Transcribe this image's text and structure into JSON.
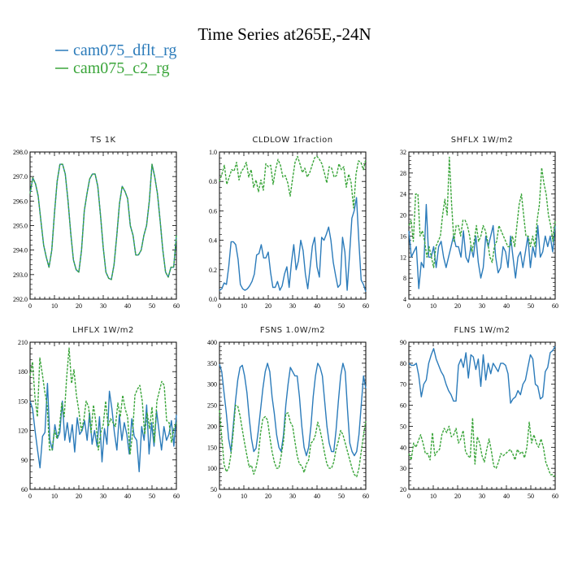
{
  "figure": {
    "title": "Time Series at265E,-24N",
    "legend": [
      {
        "label": "cam075_dflt_rg",
        "color": "#2b7bba",
        "dash": "solid"
      },
      {
        "label": "cam075_c2_rg",
        "color": "#3aa53a",
        "dash": "dashed"
      }
    ]
  },
  "chart_data": [
    {
      "type": "line",
      "title": "TS   1K",
      "xlim": [
        0,
        60
      ],
      "xticks": [
        0,
        10,
        20,
        30,
        40,
        50,
        60
      ],
      "ylim": [
        292.0,
        298.0
      ],
      "yticks": [
        "292.0",
        "293.0",
        "294.0",
        "295.0",
        "296.0",
        "297.0",
        "298.0"
      ],
      "series": [
        {
          "name": "cam075_dflt_rg",
          "color": "#2b7bba",
          "dash": "solid",
          "values": [
            296.3,
            296.95,
            296.7,
            296.2,
            295.2,
            294.2,
            293.7,
            293.3,
            294.0,
            295.5,
            296.8,
            297.5,
            297.5,
            297.1,
            296.0,
            294.7,
            293.6,
            293.2,
            293.1,
            294.0,
            295.6,
            296.3,
            296.9,
            297.1,
            297.1,
            296.6,
            295.4,
            294.1,
            293.1,
            292.85,
            292.8,
            293.4,
            294.6,
            295.9,
            296.6,
            296.4,
            296.1,
            295.0,
            294.6,
            293.8,
            293.8,
            294.0,
            294.6,
            295.0,
            296.0,
            297.5,
            297.0,
            296.3,
            295.2,
            294.0,
            293.1,
            292.9,
            293.3,
            293.3,
            294.6
          ]
        },
        {
          "name": "cam075_c2_rg",
          "color": "#3aa53a",
          "dash": "dashed",
          "values": [
            296.3,
            296.95,
            296.7,
            296.2,
            295.2,
            294.2,
            293.7,
            293.3,
            294.0,
            295.5,
            296.8,
            297.5,
            297.5,
            297.1,
            296.0,
            294.7,
            293.6,
            293.2,
            293.1,
            294.0,
            295.6,
            296.3,
            296.9,
            297.1,
            297.1,
            296.6,
            295.4,
            294.1,
            293.1,
            292.85,
            292.8,
            293.4,
            294.6,
            295.9,
            296.6,
            296.4,
            296.1,
            295.0,
            294.6,
            293.8,
            293.8,
            294.0,
            294.6,
            295.0,
            296.0,
            297.5,
            297.0,
            296.3,
            295.2,
            294.0,
            293.1,
            292.9,
            293.3,
            293.3,
            294.6
          ]
        }
      ]
    },
    {
      "type": "line",
      "title": "CLDLOW   1fraction",
      "xlim": [
        0,
        60
      ],
      "xticks": [
        0,
        10,
        20,
        30,
        40,
        50,
        60
      ],
      "ylim": [
        0.0,
        1.0
      ],
      "yticks": [
        "0.0",
        "0.2",
        "0.4",
        "0.6",
        "0.8",
        "1.0"
      ],
      "series": [
        {
          "name": "cam075_dflt_rg",
          "color": "#2b7bba",
          "dash": "solid",
          "values": [
            0.06,
            0.07,
            0.11,
            0.1,
            0.22,
            0.39,
            0.39,
            0.37,
            0.27,
            0.1,
            0.07,
            0.06,
            0.07,
            0.09,
            0.12,
            0.17,
            0.3,
            0.31,
            0.37,
            0.28,
            0.28,
            0.32,
            0.18,
            0.08,
            0.08,
            0.12,
            0.06,
            0.09,
            0.17,
            0.22,
            0.08,
            0.25,
            0.37,
            0.2,
            0.26,
            0.4,
            0.33,
            0.17,
            0.07,
            0.21,
            0.36,
            0.42,
            0.22,
            0.15,
            0.42,
            0.4,
            0.44,
            0.49,
            0.4,
            0.25,
            0.16,
            0.08,
            0.1,
            0.42,
            0.32,
            0.06,
            0.3,
            0.55,
            0.6,
            0.69,
            0.4,
            0.13,
            0.1,
            0.05
          ]
        },
        {
          "name": "cam075_c2_rg",
          "color": "#3aa53a",
          "dash": "dashed",
          "values": [
            0.8,
            0.85,
            0.91,
            0.78,
            0.83,
            0.88,
            0.87,
            0.93,
            0.81,
            0.87,
            0.89,
            0.93,
            0.83,
            0.88,
            0.76,
            0.81,
            0.73,
            0.81,
            0.74,
            0.92,
            0.9,
            0.91,
            0.78,
            0.88,
            0.95,
            0.91,
            0.83,
            0.84,
            0.79,
            0.7,
            0.82,
            0.93,
            0.97,
            0.92,
            0.86,
            0.89,
            0.83,
            0.86,
            0.91,
            0.96,
            0.97,
            0.95,
            0.92,
            0.86,
            0.79,
            0.9,
            0.89,
            0.83,
            0.84,
            0.92,
            0.88,
            0.9,
            0.76,
            0.85,
            0.79,
            0.62,
            0.85,
            0.94,
            0.93,
            0.88,
            0.95
          ]
        }
      ]
    },
    {
      "type": "line",
      "title": "SHFLX   1W/m2",
      "xlim": [
        0,
        60
      ],
      "xticks": [
        0,
        10,
        20,
        30,
        40,
        50,
        60
      ],
      "ylim": [
        4,
        32
      ],
      "yticks": [
        "4",
        "8",
        "12",
        "16",
        "20",
        "24",
        "28",
        "32"
      ],
      "series": [
        {
          "name": "cam075_dflt_rg",
          "color": "#2b7bba",
          "dash": "solid",
          "values": [
            17,
            12,
            13,
            14,
            6,
            11,
            10,
            22,
            12,
            12,
            14,
            10,
            14,
            15,
            12,
            10,
            12,
            14,
            16,
            14,
            14,
            12,
            17,
            12,
            11,
            14,
            12,
            16,
            11,
            8,
            10,
            16,
            14,
            16,
            18,
            12,
            9,
            10,
            14,
            13,
            10,
            16,
            12,
            8,
            12,
            13,
            10,
            13,
            16,
            10,
            14,
            12,
            18,
            12,
            13,
            16,
            14,
            16,
            13,
            18
          ]
        },
        {
          "name": "cam075_c2_rg",
          "color": "#3aa53a",
          "dash": "dashed",
          "values": [
            18,
            19,
            15,
            24,
            24,
            16,
            17,
            15,
            12,
            14,
            12,
            10,
            14,
            15,
            16,
            20,
            23,
            20,
            31,
            22,
            15,
            18,
            18,
            16,
            19,
            19,
            18,
            16,
            13,
            15,
            18,
            15,
            16,
            18,
            17,
            15,
            12,
            11,
            14,
            15,
            18,
            17,
            16,
            15,
            14,
            14,
            16,
            14,
            18,
            22,
            24,
            20,
            16,
            16,
            14,
            16,
            14,
            19,
            22,
            29,
            26,
            24,
            20,
            18,
            15,
            19
          ]
        }
      ]
    },
    {
      "type": "line",
      "title": "LHFLX   1W/m2",
      "xlim": [
        0,
        60
      ],
      "xticks": [
        0,
        10,
        20,
        30,
        40,
        50,
        60
      ],
      "ylim": [
        60,
        210
      ],
      "yticks": [
        "60",
        "90",
        "120",
        "150",
        "180",
        "210"
      ],
      "series": [
        {
          "name": "cam075_dflt_rg",
          "color": "#2b7bba",
          "dash": "solid",
          "values": [
            150,
            142,
            120,
            100,
            82,
            114,
            118,
            168,
            110,
            100,
            126,
            112,
            118,
            150,
            110,
            128,
            108,
            126,
            98,
            133,
            116,
            120,
            130,
            110,
            138,
            106,
            120,
            104,
            134,
            88,
            122,
            106,
            160,
            142,
            118,
            100,
            136,
            110,
            128,
            116,
            96,
            132,
            114,
            110,
            78,
            124,
            110,
            146,
            96,
            128,
            104,
            140,
            120,
            100,
            124,
            110,
            116,
            130,
            104,
            136
          ]
        },
        {
          "name": "cam075_c2_rg",
          "color": "#3aa53a",
          "dash": "dashed",
          "values": [
            176,
            190,
            154,
            134,
            194,
            178,
            160,
            146,
            100,
            100,
            120,
            112,
            122,
            148,
            134,
            174,
            204,
            168,
            182,
            156,
            140,
            120,
            130,
            150,
            144,
            118,
            146,
            128,
            100,
            118,
            126,
            150,
            124,
            132,
            128,
            124,
            148,
            134,
            156,
            142,
            134,
            96,
            116,
            156,
            162,
            166,
            150,
            116,
            138,
            122,
            144,
            108,
            150,
            160,
            170,
            166,
            130,
            128,
            108,
            122,
            128
          ]
        }
      ]
    },
    {
      "type": "line",
      "title": "FSNS   1.0W/m2",
      "xlim": [
        0,
        60
      ],
      "xticks": [
        0,
        10,
        20,
        30,
        40,
        50,
        60
      ],
      "ylim": [
        50,
        400
      ],
      "yticks": [
        "50",
        "100",
        "150",
        "200",
        "250",
        "300",
        "350",
        "400"
      ],
      "series": [
        {
          "name": "cam075_dflt_rg",
          "color": "#2b7bba",
          "dash": "solid",
          "values": [
            348,
            330,
            280,
            232,
            170,
            140,
            200,
            260,
            310,
            340,
            345,
            320,
            280,
            220,
            170,
            140,
            148,
            190,
            240,
            290,
            330,
            350,
            330,
            270,
            230,
            180,
            150,
            140,
            180,
            250,
            300,
            340,
            330,
            320,
            320,
            270,
            200,
            150,
            130,
            150,
            200,
            270,
            320,
            350,
            340,
            320,
            260,
            200,
            160,
            140,
            140,
            190,
            260,
            320,
            350,
            330,
            240,
            160,
            140,
            130,
            140,
            180,
            250,
            320,
            290
          ]
        },
        {
          "name": "cam075_c2_rg",
          "color": "#3aa53a",
          "dash": "dashed",
          "values": [
            238,
            175,
            110,
            92,
            100,
            133,
            185,
            250,
            248,
            225,
            192,
            160,
            130,
            103,
            107,
            86,
            102,
            130,
            185,
            218,
            223,
            215,
            175,
            140,
            115,
            100,
            100,
            130,
            165,
            230,
            232,
            210,
            200,
            164,
            130,
            110,
            106,
            90,
            110,
            120,
            160,
            165,
            180,
            210,
            190,
            165,
            135,
            110,
            100,
            100,
            115,
            145,
            165,
            190,
            180,
            160,
            140,
            120,
            100,
            85,
            80,
            100,
            140,
            180,
            212
          ]
        }
      ]
    },
    {
      "type": "line",
      "title": "FLNS   1W/m2",
      "xlim": [
        0,
        60
      ],
      "xticks": [
        0,
        10,
        20,
        30,
        40,
        50,
        60
      ],
      "ylim": [
        20,
        90
      ],
      "yticks": [
        "20",
        "30",
        "40",
        "50",
        "60",
        "70",
        "80",
        "90"
      ],
      "series": [
        {
          "name": "cam075_dflt_rg",
          "color": "#2b7bba",
          "dash": "solid",
          "values": [
            80,
            79,
            79,
            80,
            74,
            64,
            70,
            72,
            80,
            84,
            87,
            82,
            79,
            76,
            74,
            70,
            67,
            65,
            62,
            62,
            79,
            82,
            78,
            85,
            73,
            84,
            83,
            77,
            82,
            69,
            84,
            72,
            80,
            75,
            80,
            78,
            76,
            80,
            80,
            79,
            75,
            61,
            63,
            64,
            67,
            65,
            70,
            72,
            78,
            84,
            82,
            70,
            69,
            63,
            64,
            76,
            78,
            85,
            86,
            88
          ]
        },
        {
          "name": "cam075_c2_rg",
          "color": "#3aa53a",
          "dash": "dashed",
          "values": [
            37,
            34,
            42,
            40,
            43,
            46,
            42,
            37,
            37,
            34,
            47,
            36,
            38,
            39,
            46,
            49,
            47,
            50,
            45,
            46,
            49,
            42,
            44,
            48,
            38,
            36,
            35,
            54,
            32,
            45,
            42,
            36,
            33,
            39,
            44,
            38,
            31,
            30,
            33,
            37,
            36,
            37,
            38,
            39,
            37,
            34,
            39,
            37,
            38,
            35,
            40,
            52,
            42,
            46,
            42,
            40,
            44,
            40,
            33,
            30,
            27,
            27,
            26
          ]
        }
      ]
    }
  ]
}
